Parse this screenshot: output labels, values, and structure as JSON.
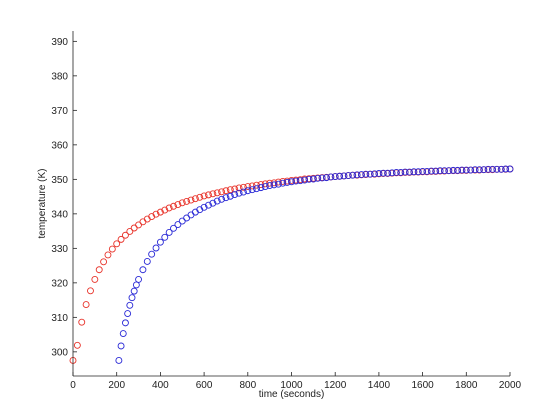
{
  "chart_data": {
    "type": "scatter",
    "title": "",
    "xlabel": "time (seconds)",
    "ylabel": "temperature (K)",
    "xlim": [
      0,
      2000
    ],
    "ylim": [
      293,
      393
    ],
    "x_ticks": [
      0,
      200,
      400,
      600,
      800,
      1000,
      1200,
      1400,
      1600,
      1800,
      2000
    ],
    "y_ticks": [
      300,
      310,
      320,
      330,
      340,
      350,
      360,
      370,
      380,
      390
    ],
    "x_tick_labels": [
      "0",
      "200",
      "400",
      "600",
      "800",
      "1000",
      "1200",
      "1400",
      "1600",
      "1800",
      "2000"
    ],
    "y_tick_labels": [
      "300",
      "310",
      "320",
      "330",
      "340",
      "350",
      "360",
      "370",
      "380",
      "390"
    ],
    "grid": false,
    "legend": "none",
    "marker": "open-circle",
    "series": [
      {
        "color": "#e8332a",
        "x": [
          0,
          20,
          40,
          60,
          80,
          100,
          120,
          140,
          160,
          180,
          200,
          220,
          240,
          260,
          280,
          300,
          320,
          340,
          360,
          380,
          400,
          420,
          440,
          460,
          480,
          500,
          520,
          540,
          560,
          580,
          600,
          620,
          640,
          660,
          680,
          700,
          720,
          740,
          760,
          780,
          800,
          820,
          840,
          860,
          880,
          900,
          920,
          940,
          960,
          980,
          1000,
          1020,
          1040,
          1060,
          1080,
          1100,
          1120,
          1140,
          1160,
          1180,
          1200,
          1220,
          1240,
          1260,
          1280,
          1300,
          1320,
          1340,
          1360,
          1380,
          1400,
          1420,
          1440,
          1460,
          1480,
          1500,
          1520,
          1540,
          1560,
          1580,
          1600,
          1620,
          1640,
          1660,
          1680,
          1700,
          1720,
          1740,
          1760,
          1780,
          1800,
          1820,
          1840,
          1860,
          1880,
          1900,
          1920,
          1940,
          1960,
          1980,
          2000
        ],
        "y": [
          297.5,
          301.9,
          308.6,
          313.7,
          317.7,
          321.0,
          323.8,
          326.1,
          328.1,
          329.8,
          331.3,
          332.6,
          333.8,
          334.9,
          335.9,
          336.8,
          337.7,
          338.5,
          339.2,
          339.9,
          340.5,
          341.1,
          341.7,
          342.2,
          342.7,
          343.2,
          343.6,
          344.0,
          344.4,
          344.8,
          345.2,
          345.5,
          345.8,
          346.1,
          346.4,
          346.7,
          347.0,
          347.2,
          347.5,
          347.7,
          347.9,
          348.1,
          348.3,
          348.5,
          348.7,
          348.9,
          349.0,
          349.2,
          349.4,
          349.5,
          349.7,
          349.8,
          349.9,
          350.1,
          350.2,
          350.3,
          350.4,
          350.5,
          350.6,
          350.7,
          350.8,
          350.9,
          351.0,
          351.1,
          351.2,
          351.2,
          351.3,
          351.4,
          351.5,
          351.5,
          351.6,
          351.7,
          351.7,
          351.8,
          351.9,
          351.9,
          352.0,
          352.0,
          352.1,
          352.1,
          352.2,
          352.2,
          352.3,
          352.3,
          352.4,
          352.4,
          352.5,
          352.5,
          352.5,
          352.6,
          352.6,
          352.7,
          352.7,
          352.7,
          352.8,
          352.8,
          352.8,
          352.9,
          352.9,
          352.9,
          353.0
        ]
      },
      {
        "color": "#2a2ad6",
        "x": [
          210,
          220,
          230,
          240,
          250,
          260,
          270,
          280,
          290,
          300,
          320,
          340,
          360,
          380,
          400,
          420,
          440,
          460,
          480,
          500,
          520,
          540,
          560,
          580,
          600,
          620,
          640,
          660,
          680,
          700,
          720,
          740,
          760,
          780,
          800,
          820,
          840,
          860,
          880,
          900,
          920,
          940,
          960,
          980,
          1000,
          1020,
          1040,
          1060,
          1080,
          1100,
          1120,
          1140,
          1160,
          1180,
          1200,
          1220,
          1240,
          1260,
          1280,
          1300,
          1320,
          1340,
          1360,
          1380,
          1400,
          1420,
          1440,
          1460,
          1480,
          1500,
          1520,
          1540,
          1560,
          1580,
          1600,
          1620,
          1640,
          1660,
          1680,
          1700,
          1720,
          1740,
          1760,
          1780,
          1800,
          1820,
          1840,
          1860,
          1880,
          1900,
          1920,
          1940,
          1960,
          1980,
          2000
        ],
        "y": [
          297.5,
          301.7,
          305.3,
          308.4,
          311.1,
          313.5,
          315.7,
          317.6,
          319.4,
          321.0,
          323.8,
          326.2,
          328.3,
          330.1,
          331.8,
          333.2,
          334.6,
          335.8,
          336.9,
          337.9,
          338.8,
          339.7,
          340.5,
          341.2,
          341.9,
          342.5,
          343.1,
          343.7,
          344.2,
          344.7,
          345.1,
          345.6,
          346.0,
          346.3,
          346.7,
          347.0,
          347.3,
          347.6,
          347.9,
          348.2,
          348.4,
          348.6,
          348.9,
          349.1,
          349.3,
          349.5,
          349.6,
          349.8,
          350.0,
          350.1,
          350.3,
          350.4,
          350.5,
          350.7,
          350.8,
          350.9,
          351.0,
          351.1,
          351.2,
          351.3,
          351.4,
          351.5,
          351.5,
          351.6,
          351.7,
          351.8,
          351.8,
          351.9,
          352.0,
          352.0,
          352.1,
          352.1,
          352.2,
          352.2,
          352.3,
          352.3,
          352.4,
          352.4,
          352.5,
          352.5,
          352.5,
          352.6,
          352.6,
          352.7,
          352.7,
          352.7,
          352.8,
          352.8,
          352.8,
          352.9,
          352.9,
          352.9,
          352.9,
          353.0,
          353.0
        ]
      }
    ]
  }
}
